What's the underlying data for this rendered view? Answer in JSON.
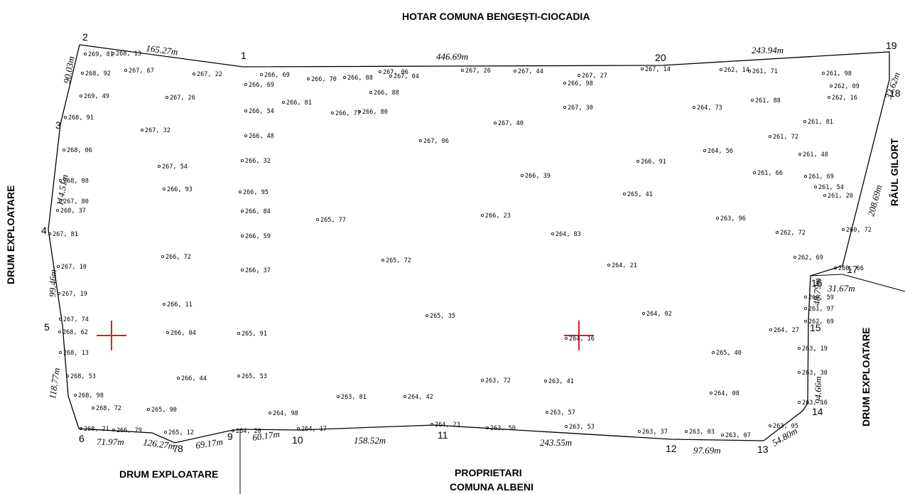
{
  "boundary_labels": {
    "top": "HOTAR COMUNA BENGEȘTI-CIOCADIA",
    "left": "DRUM EXPLOATARE",
    "right_top": "RÂUL GILORT",
    "right_bottom": "DRUM EXPLOATARE",
    "bottom_left": "DRUM EXPLOATARE",
    "bottom_center_line1": "PROPRIETARI",
    "bottom_center_line2": "COMUNA ALBENI"
  },
  "vertices": [
    "1",
    "2",
    "3",
    "4",
    "5",
    "6",
    "7",
    "8",
    "9",
    "10",
    "11",
    "12",
    "13",
    "14",
    "15",
    "16",
    "17",
    "18",
    "19",
    "20"
  ],
  "edge_lengths": [
    "165.27m",
    "446.69m",
    "243.94m",
    "32.62m",
    "208.69m",
    "90.03m",
    "114.51m",
    "99.46m",
    "118.77m",
    "71.97m",
    "126.27m",
    "69.17m",
    "60.17m",
    "158.52m",
    "243.55m",
    "97.69m",
    "54.80m",
    "94.66m",
    "48.79m",
    "31.67m"
  ],
  "elevations": [
    "269, 81",
    "268, 13",
    "268, 92",
    "267, 67",
    "267, 22",
    "269, 49",
    "267, 26",
    "268, 91",
    "267, 32",
    "268, 06",
    "267, 54",
    "268, 08",
    "266, 93",
    "267, 80",
    "268, 37",
    "267, 81",
    "266, 72",
    "267, 10",
    "267, 19",
    "266, 11",
    "267, 74",
    "268, 62",
    "266, 04",
    "268, 13",
    "268, 53",
    "266, 44",
    "268, 98",
    "268, 72",
    "265, 90",
    "268, 21",
    "266, 79",
    "265, 12",
    "266, 69",
    "266, 69",
    "266, 54",
    "266, 48",
    "266, 32",
    "266, 95",
    "266, 84",
    "266, 59",
    "266, 37",
    "265, 91",
    "265, 53",
    "264, 98",
    "264, 20",
    "264, 17",
    "266, 70",
    "266, 88",
    "266, 81",
    "267, 06",
    "267, 04",
    "266, 88",
    "266, 80",
    "266, 77",
    "265, 77",
    "267, 26",
    "267, 06",
    "265, 72",
    "265, 35",
    "263, 81",
    "264, 42",
    "264, 23",
    "267, 44",
    "267, 40",
    "266, 39",
    "266, 23",
    "263, 72",
    "263, 50",
    "267, 27",
    "266, 98",
    "267, 30",
    "264, 83",
    "263, 41",
    "263, 57",
    "263, 53",
    "264, 16",
    "264, 21",
    "267, 14",
    "266, 91",
    "265, 41",
    "264, 02",
    "263, 37",
    "262, 14",
    "261, 71",
    "264, 73",
    "264, 56",
    "263, 96",
    "265, 40",
    "264, 08",
    "263, 03",
    "263, 07",
    "261, 98",
    "262, 09",
    "262, 16",
    "261, 88",
    "261, 81",
    "261, 72",
    "261, 48",
    "261, 66",
    "261, 69",
    "261, 54",
    "261, 20",
    "262, 72",
    "260, 72",
    "262, 69",
    "260, 66",
    "260, 59",
    "261, 97",
    "262, 69",
    "264, 27",
    "263, 19",
    "263, 30",
    "263, 16",
    "263, 05"
  ]
}
